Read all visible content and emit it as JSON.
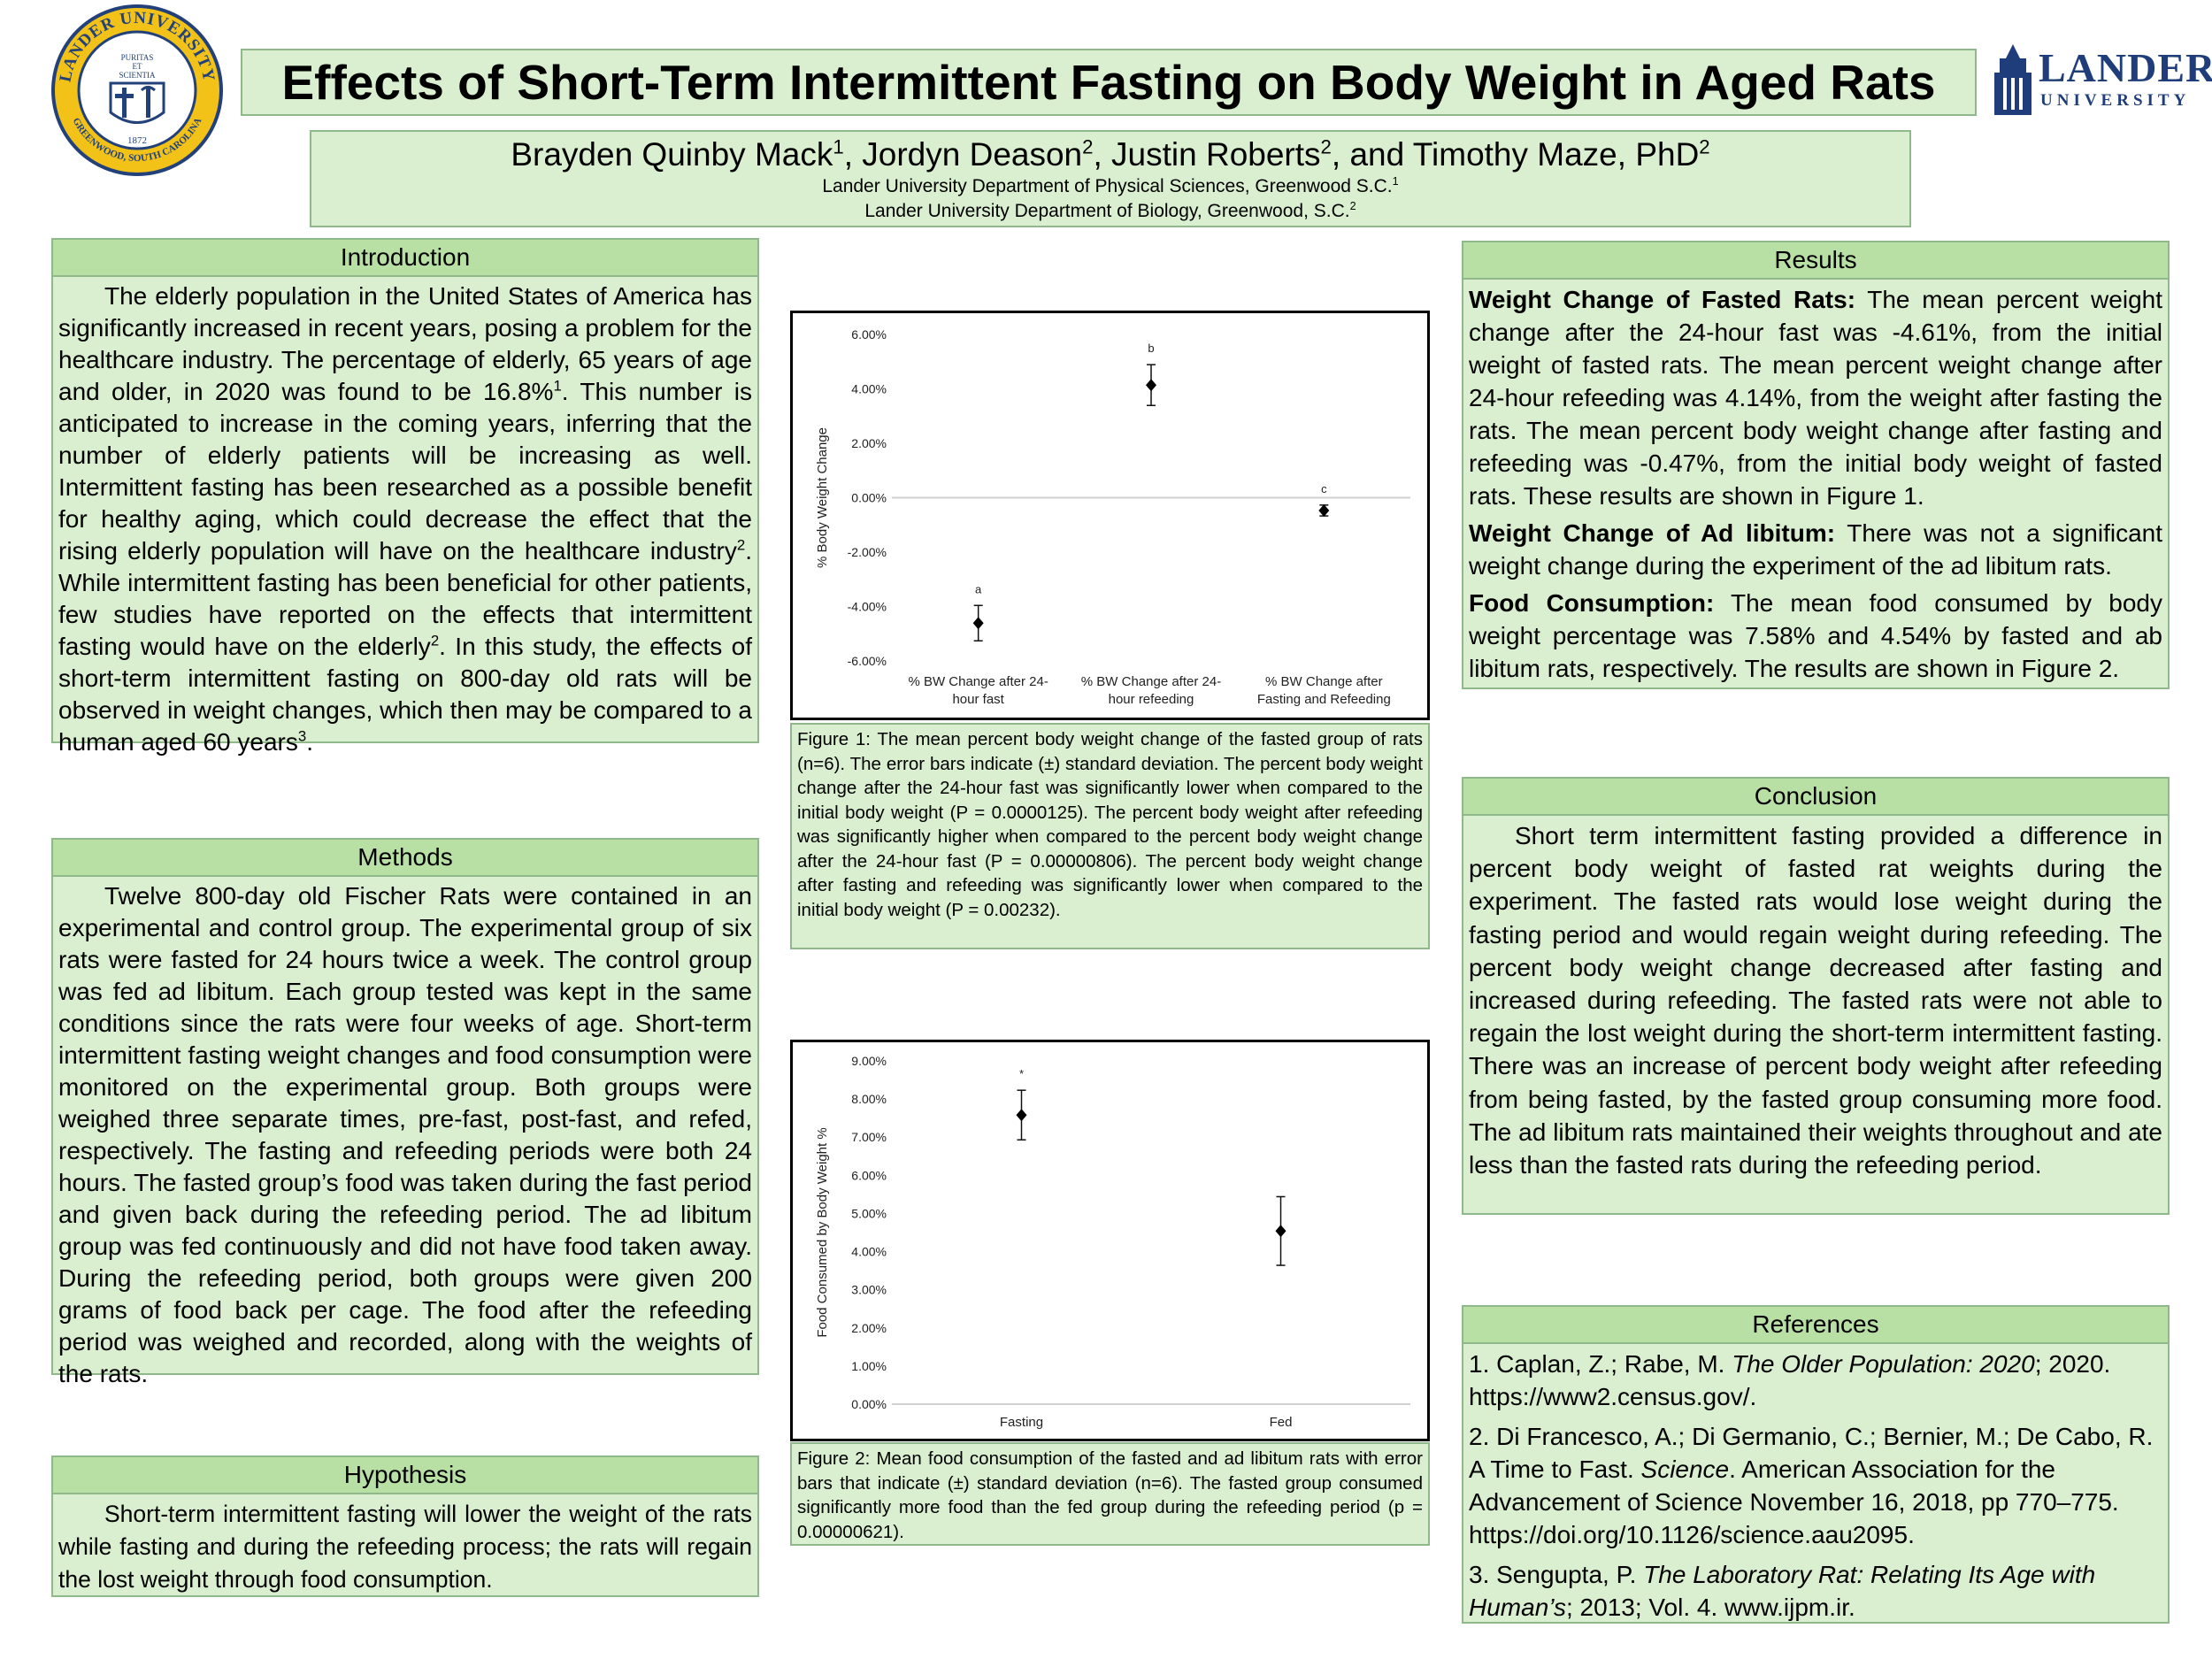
{
  "title": "Effects of Short-Term Intermittent Fasting on Body Weight in Aged Rats",
  "seal": {
    "ring_top": "LANDER UNIVERSITY",
    "ring_bottom": "GREENWOOD, SOUTH CAROLINA",
    "motto_1": "PURITAS",
    "motto_2": "ET",
    "motto_3": "SCIENTIA",
    "year": "1872"
  },
  "logo": {
    "line1": "LANDER",
    "line2": "UNIVERSITY"
  },
  "authors": {
    "a1": "Brayden Quinby Mack",
    "a1_sup": "1",
    "a2": ", Jordyn Deason",
    "a2_sup": "2",
    "a3": ", Justin Roberts",
    "a3_sup": "2",
    "a4": ", and Timothy Maze, PhD",
    "a4_sup": "2",
    "aff1": "Lander University Department of Physical Sciences, Greenwood S.C.",
    "aff1_sup": "1",
    "aff2": "Lander University Department of Biology, Greenwood, S.C.",
    "aff2_sup": "2"
  },
  "introduction": {
    "heading": "Introduction",
    "t1": "The elderly population in the United States of America has significantly increased in recent years, posing a problem for the healthcare industry. The percentage of elderly, 65 years of age and older, in 2020 was found to be 16.8%",
    "s1": "1",
    "t2": ". This number is anticipated to increase in the coming years, inferring that the number of elderly patients will be increasing as well. Intermittent fasting has been researched as a possible benefit for healthy aging, which could decrease the effect that the rising elderly population will have on the healthcare industry",
    "s2": "2",
    "t3": ". While intermittent fasting has been beneficial for other patients, few studies have reported on the effects that intermittent fasting would have on the elderly",
    "s3": "2",
    "t4": ". In this study, the effects of short-term intermittent fasting on 800-day old rats will be observed in weight changes, which then may be compared to a human aged 60 years",
    "s4": "3",
    "t5": "."
  },
  "methods": {
    "heading": "Methods",
    "text": "Twelve 800-day old Fischer Rats were contained in an experimental and control group. The experimental group of six rats were fasted for 24 hours twice a week. The control group was fed ad libitum. Each group tested was kept in the same conditions since the rats were four weeks of age. Short-term intermittent fasting weight changes and food consumption were monitored on the experimental group. Both groups were weighed three separate times, pre-fast, post-fast, and refed, respectively. The fasting and refeeding periods were both 24 hours. The fasted group’s food was taken during the fast period and given back during the refeeding period. The ad libitum group was fed continuously and did not have food taken away. During the refeeding period, both groups were given 200 grams of food back per cage. The food after the refeeding period was weighed and recorded, along with the weights of the rats."
  },
  "hypothesis": {
    "heading": "Hypothesis",
    "text": "Short-term intermittent fasting will lower the weight of the rats while fasting and during the refeeding process; the rats will regain the lost weight through food consumption."
  },
  "results": {
    "heading": "Results",
    "p1_bold": "Weight Change of Fasted Rats:",
    "p1_text": " The mean percent weight change after the 24-hour fast  was -4.61%, from the initial weight of fasted rats. The mean percent weight change after 24-hour refeeding was 4.14%, from the weight after fasting the rats. The mean percent body weight change after fasting and refeeding was -0.47%, from the initial body weight of fasted rats. These results are shown in Figure 1.",
    "p2_bold": "Weight Change of Ad libitum:",
    "p2_text": " There was not a significant weight change during the experiment of the ad libitum rats.",
    "p3_bold": "Food Consumption:",
    "p3_text": " The mean food consumed by body weight percentage was 7.58% and 4.54% by fasted and ab libitum rats, respectively. The results are shown in Figure 2."
  },
  "conclusion": {
    "heading": "Conclusion",
    "text": "Short term intermittent fasting provided a difference in percent body weight of fasted rat weights during the experiment. The fasted rats would lose weight during the fasting period and would regain weight during refeeding. The percent body weight change decreased after fasting and increased during refeeding. The fasted rats were not able to regain the lost weight during the short-term intermittent fasting. There was an increase of percent body weight after refeeding from being fasted, by the fasted group consuming more food. The ad libitum rats maintained their weights throughout and ate less than the fasted rats during the refeeding period."
  },
  "references": {
    "heading": "References",
    "r1a": "1. Caplan, Z.; Rabe, M. ",
    "r1i": "The Older Population: 2020",
    "r1b": "; 2020. https://www2.census.gov/.",
    "r2a": "2. Di Francesco, A.; Di Germanio, C.; Bernier, M.; De Cabo, R. A Time to Fast. ",
    "r2i": "Science",
    "r2b": ". American Association for the Advancement of Science November 16, 2018, pp 770–775. https://doi.org/10.1126/science.aau2095.",
    "r3a": "3. Sengupta, P. ",
    "r3i": "The Laboratory Rat: Relating Its Age with Human’s",
    "r3b": "; 2013; Vol. 4. www.ijpm.ir."
  },
  "figure1_caption": "Figure 1: The mean percent body weight change of the fasted group of rats (n=6). The error bars indicate (±) standard deviation. The percent body weight change after the 24-hour fast was significantly lower when compared to the initial body weight (P = 0.0000125). The percent body weight after refeeding was significantly higher when compared to the percent body weight change after the 24-hour fast (P = 0.00000806). The percent body weight change after fasting and refeeding was significantly lower when compared to the initial body weight (P = 0.00232).",
  "figure2_caption": "Figure 2: Mean food consumption of the fasted and ad libitum rats with error bars that indicate (±) standard deviation (n=6). The fasted group consumed significantly more food than the fed group during the refeeding period (p = 0.00000621).",
  "chart_data": [
    {
      "type": "scatter",
      "ylabel": "% Body Weight Change",
      "ylim": [
        -6,
        6
      ],
      "yticks": [
        6,
        4,
        2,
        0,
        -2,
        -4,
        -6
      ],
      "ytick_labels": [
        "6.00%",
        "4.00%",
        "2.00%",
        "0.00%",
        "-2.00%",
        "-4.00%",
        "-6.00%"
      ],
      "categories": [
        [
          "% BW Change after 24-",
          "hour fast"
        ],
        [
          "% BW Change after 24-",
          "hour refeeding"
        ],
        [
          "% BW Change after",
          "Fasting and Refeeding"
        ]
      ],
      "values": [
        -4.61,
        4.14,
        -0.47
      ],
      "errors": [
        0.65,
        0.75,
        0.2
      ],
      "annotations": [
        "a",
        "b",
        "c"
      ],
      "grid": false,
      "zero_line": true
    },
    {
      "type": "scatter",
      "ylabel": "Food Consumed by Body Weight %",
      "ylim": [
        0,
        9
      ],
      "yticks": [
        9,
        8,
        7,
        6,
        5,
        4,
        3,
        2,
        1,
        0
      ],
      "ytick_labels": [
        "9.00%",
        "8.00%",
        "7.00%",
        "6.00%",
        "5.00%",
        "4.00%",
        "3.00%",
        "2.00%",
        "1.00%",
        "0.00%"
      ],
      "categories": [
        [
          "Fasting"
        ],
        [
          "Fed"
        ]
      ],
      "values": [
        7.58,
        4.54
      ],
      "errors": [
        0.65,
        0.9
      ],
      "annotations": [
        "*",
        ""
      ],
      "grid": false
    }
  ],
  "colors": {
    "panel_bg": "#d9efcf",
    "header_bg": "#b8e0a4",
    "border": "#8fb98a",
    "seal_gold": "#f2c218",
    "seal_blue": "#22417a",
    "logo_blue": "#1f3d7a"
  }
}
